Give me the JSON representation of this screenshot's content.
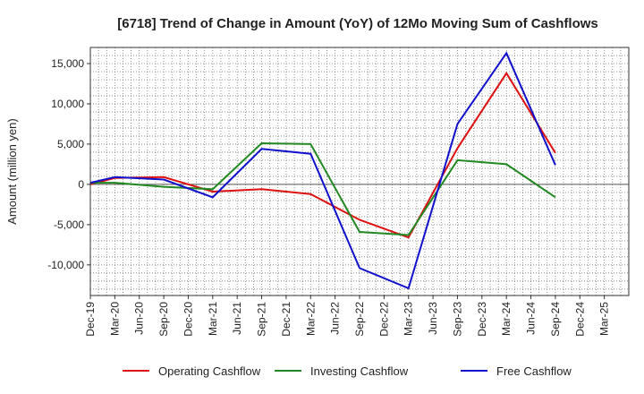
{
  "chart_data": {
    "type": "line",
    "title": "[6718]  Trend of Change in Amount (YoY) of 12Mo Moving Sum of Cashflows",
    "xlabel": "",
    "ylabel": "Amount (million yen)",
    "ylim": [
      -13800,
      17000
    ],
    "yticks": [
      15000,
      10000,
      5000,
      0,
      -5000,
      -10000
    ],
    "ytick_labels": [
      "15,000",
      "10,000",
      "5,000",
      "0",
      "-5,000",
      "-10,000"
    ],
    "categories": [
      "Dec-19",
      "Mar-20",
      "Jun-20",
      "Sep-20",
      "Dec-20",
      "Mar-21",
      "Jun-21",
      "Sep-21",
      "Dec-21",
      "Mar-22",
      "Jun-22",
      "Sep-22",
      "Dec-22",
      "Mar-23",
      "Jun-23",
      "Sep-23",
      "Dec-23",
      "Mar-24",
      "Jun-24",
      "Sep-24",
      "Dec-24",
      "Mar-25"
    ],
    "x": [
      "Dec-19",
      "Mar-20",
      "Jun-20",
      "Sep-20",
      "Dec-20",
      "Mar-21",
      "Jun-21",
      "Sep-21",
      "Dec-21",
      "Mar-22",
      "Jun-22",
      "Sep-22",
      "Dec-22",
      "Mar-23",
      "Jun-23",
      "Sep-23",
      "Dec-23",
      "Mar-24",
      "Jun-24",
      "Sep-24",
      "Dec-24",
      "Mar-25"
    ],
    "series": [
      {
        "name": "Operating Cashflow",
        "color": "#dd1111",
        "values": [
          0,
          800,
          null,
          900,
          null,
          -900,
          null,
          -600,
          null,
          -1200,
          null,
          -4400,
          null,
          -6600,
          null,
          4500,
          null,
          13800,
          null,
          3900,
          null,
          null
        ]
      },
      {
        "name": "Investing Cashflow",
        "color": "#228822",
        "values": [
          200,
          200,
          null,
          -300,
          null,
          -600,
          null,
          5100,
          null,
          5000,
          null,
          -5900,
          null,
          -6300,
          null,
          3000,
          null,
          2500,
          null,
          -1600,
          null,
          null
        ]
      },
      {
        "name": "Free Cashflow",
        "color": "#1111cc",
        "values": [
          200,
          900,
          null,
          600,
          null,
          -1600,
          null,
          4400,
          null,
          3800,
          null,
          -10400,
          null,
          -12900,
          null,
          7500,
          null,
          16300,
          null,
          2400,
          null,
          null
        ]
      }
    ],
    "legend_position": "bottom",
    "grid": true
  }
}
